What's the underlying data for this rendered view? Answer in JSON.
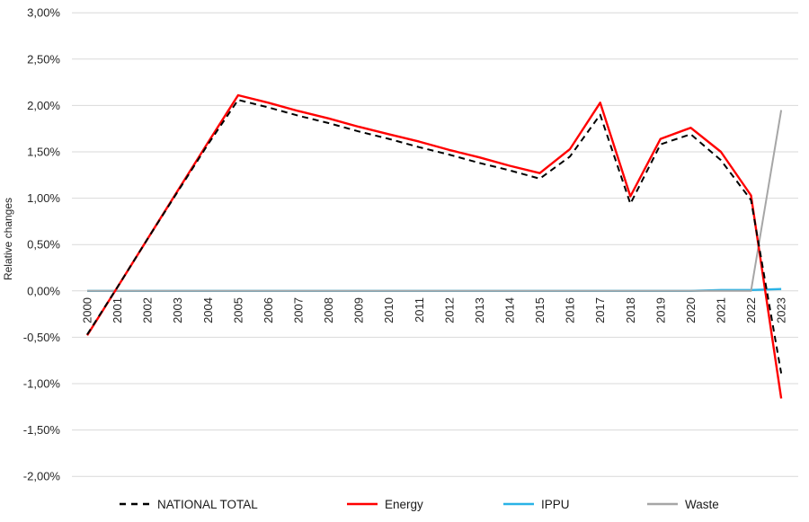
{
  "chart_data": {
    "type": "line",
    "title": "",
    "xlabel": "",
    "ylabel": "Relative changes",
    "ylim": [
      -2.0,
      3.0
    ],
    "grid": true,
    "legend_position": "bottom",
    "x": [
      "2000",
      "2001",
      "2002",
      "2003",
      "2004",
      "2005",
      "2006",
      "2007",
      "2008",
      "2009",
      "2010",
      "2011",
      "2012",
      "2013",
      "2014",
      "2015",
      "2016",
      "2017",
      "2018",
      "2019",
      "2020",
      "2021",
      "2022",
      "2023"
    ],
    "y_tick_labels": [
      "3,00%",
      "2,50%",
      "2,00%",
      "1,50%",
      "1,00%",
      "0,50%",
      "0,00%",
      "-0,50%",
      "-1,00%",
      "-1,50%",
      "-2,00%"
    ],
    "y_tick_values": [
      3.0,
      2.5,
      2.0,
      1.5,
      1.0,
      0.5,
      0.0,
      -0.5,
      -1.0,
      -1.5,
      -2.0
    ],
    "series": [
      {
        "name": "NATIONAL TOTAL",
        "color": "#000000",
        "dashed": true,
        "values": [
          -0.47,
          0.04,
          0.56,
          1.07,
          1.58,
          2.06,
          1.98,
          1.89,
          1.81,
          1.72,
          1.64,
          1.55,
          1.47,
          1.38,
          1.3,
          1.21,
          1.45,
          1.9,
          0.94,
          1.58,
          1.69,
          1.41,
          0.98,
          -0.89
        ]
      },
      {
        "name": "Energy",
        "color": "#ff0000",
        "dashed": false,
        "values": [
          -0.48,
          0.04,
          0.56,
          1.08,
          1.6,
          2.11,
          2.03,
          1.94,
          1.86,
          1.77,
          1.69,
          1.61,
          1.52,
          1.44,
          1.35,
          1.27,
          1.53,
          2.03,
          1.02,
          1.64,
          1.76,
          1.5,
          1.03,
          -1.16
        ]
      },
      {
        "name": "IPPU",
        "color": "#29b3e6",
        "dashed": false,
        "values": [
          0.0,
          0.0,
          0.0,
          0.0,
          0.0,
          0.0,
          0.0,
          0.0,
          0.0,
          0.0,
          0.0,
          0.0,
          0.0,
          0.0,
          0.0,
          0.0,
          0.0,
          0.0,
          0.0,
          0.0,
          0.0,
          0.01,
          0.01,
          0.02
        ]
      },
      {
        "name": "Waste",
        "color": "#a6a6a6",
        "dashed": false,
        "values": [
          0.0,
          0.0,
          0.0,
          0.0,
          0.0,
          0.0,
          0.0,
          0.0,
          0.0,
          0.0,
          0.0,
          0.0,
          0.0,
          0.0,
          0.0,
          0.0,
          0.0,
          0.0,
          0.0,
          0.0,
          0.0,
          0.0,
          0.0,
          1.95
        ]
      }
    ],
    "colors": {
      "gridline": "#d9d9d9",
      "tick_text": "#262626"
    }
  },
  "legend": {
    "items": [
      {
        "label": "NATIONAL TOTAL"
      },
      {
        "label": "Energy"
      },
      {
        "label": "IPPU"
      },
      {
        "label": "Waste"
      }
    ]
  }
}
